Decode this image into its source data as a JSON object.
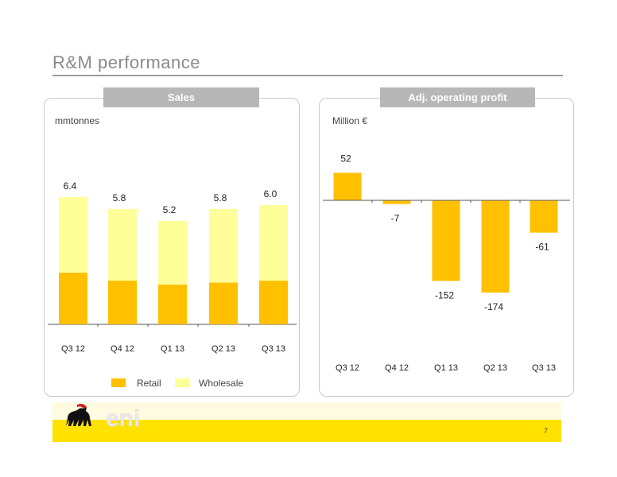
{
  "page": {
    "title": "R&M performance",
    "page_number": "7"
  },
  "left_panel": {
    "tab": "Sales",
    "unit": "mmtonnes"
  },
  "right_panel": {
    "tab": "Adj. operating profit",
    "unit": "Million €"
  },
  "legend": {
    "retail": "Retail",
    "wholesale": "Wholesale"
  },
  "logo": {
    "text": "eni"
  },
  "colors": {
    "retail": "#FFC000",
    "wholesale": "#FFFF99",
    "profit": "#FFC000",
    "footer": "#FFE200"
  },
  "chart_data": [
    {
      "type": "bar",
      "stacked": true,
      "title": "Sales",
      "ylabel": "mmtonnes",
      "categories": [
        "Q3 12",
        "Q4 12",
        "Q1 13",
        "Q2 13",
        "Q3 13"
      ],
      "series": [
        {
          "name": "Retail",
          "values": [
            2.6,
            2.2,
            2.0,
            2.1,
            2.2
          ]
        },
        {
          "name": "Wholesale",
          "values": [
            3.8,
            3.6,
            3.2,
            3.7,
            3.8
          ]
        }
      ],
      "totals": [
        6.4,
        5.8,
        5.2,
        5.8,
        6.0
      ],
      "total_labels": [
        "6.4",
        "5.8",
        "5.2",
        "5.8",
        "6.0"
      ],
      "ylim": [
        0,
        7.8
      ],
      "legend": "bottom"
    },
    {
      "type": "bar",
      "title": "Adj. operating profit",
      "ylabel": "Million €",
      "categories": [
        "Q3 12",
        "Q4 12",
        "Q1 13",
        "Q2 13",
        "Q3 13"
      ],
      "values": [
        52,
        -7,
        -152,
        -174,
        -61
      ],
      "value_labels": [
        "52",
        "-7",
        "-152",
        "-174",
        "-61"
      ],
      "ylim": [
        -200,
        80
      ]
    }
  ]
}
